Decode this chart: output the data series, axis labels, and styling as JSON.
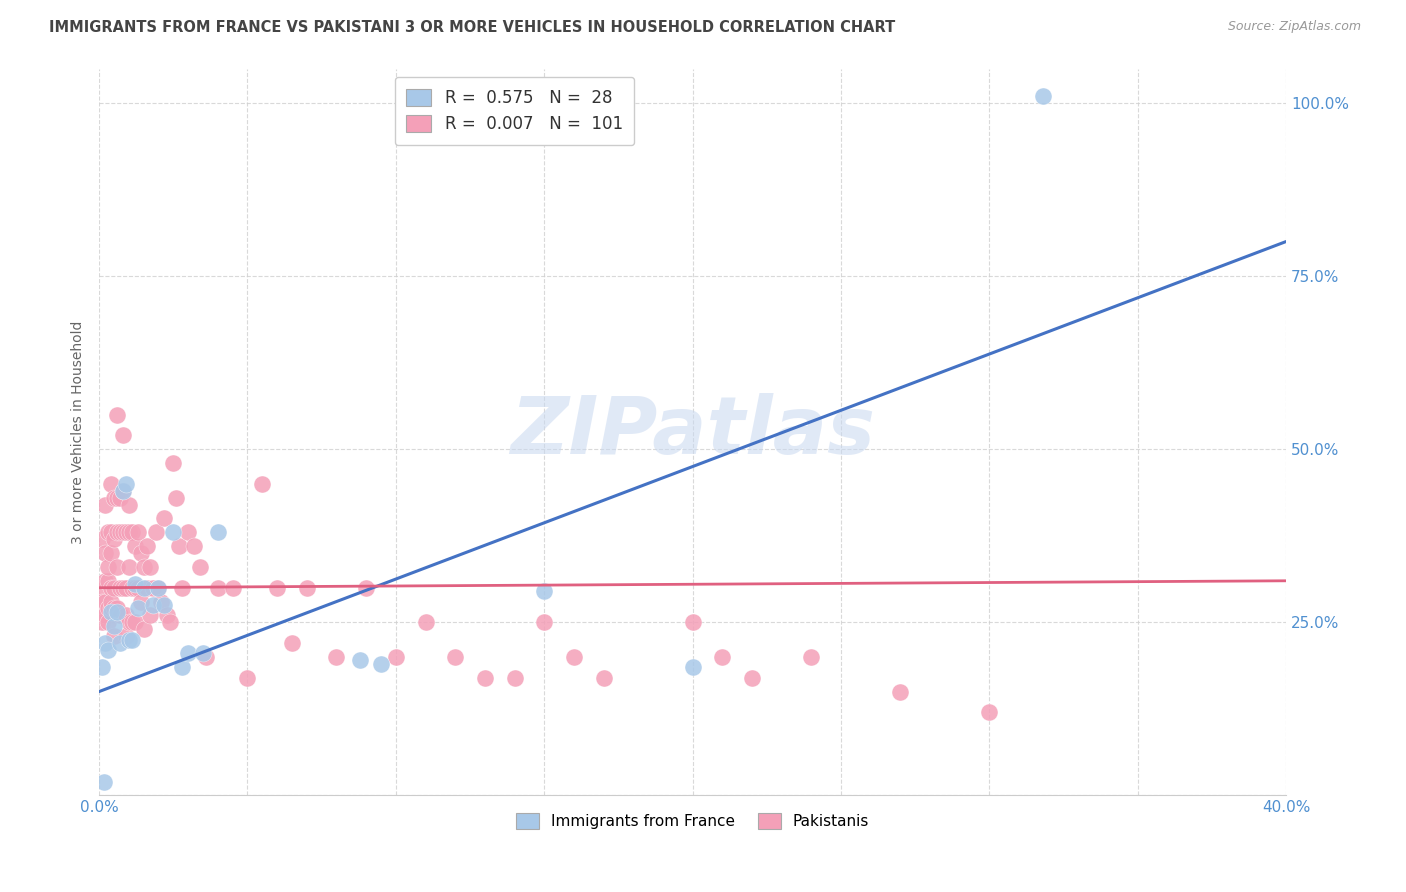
{
  "title": "IMMIGRANTS FROM FRANCE VS PAKISTANI 3 OR MORE VEHICLES IN HOUSEHOLD CORRELATION CHART",
  "source": "Source: ZipAtlas.com",
  "ylabel": "3 or more Vehicles in Household",
  "legend_blue_R": "0.575",
  "legend_blue_N": "28",
  "legend_pink_R": "0.007",
  "legend_pink_N": "101",
  "legend_blue_label": "Immigrants from France",
  "legend_pink_label": "Pakistanis",
  "watermark": "ZIPatlas",
  "blue_scatter_color": "#a8c8e8",
  "blue_line_color": "#4472c4",
  "pink_scatter_color": "#f4a0b8",
  "pink_line_color": "#e06080",
  "axis_label_color": "#5090d0",
  "background_color": "#ffffff",
  "grid_color": "#d0d0d0",
  "title_color": "#444444",
  "source_color": "#999999",
  "watermark_color": "#c8d8f0",
  "xlim": [
    0.0,
    0.4
  ],
  "ylim": [
    0.0,
    1.05
  ],
  "france_x": [
    0.001,
    0.0015,
    0.002,
    0.003,
    0.004,
    0.005,
    0.006,
    0.007,
    0.008,
    0.009,
    0.01,
    0.011,
    0.012,
    0.013,
    0.015,
    0.018,
    0.02,
    0.022,
    0.025,
    0.028,
    0.03,
    0.035,
    0.04,
    0.088,
    0.095,
    0.15,
    0.2,
    0.318
  ],
  "france_y": [
    0.185,
    0.02,
    0.22,
    0.21,
    0.265,
    0.245,
    0.265,
    0.22,
    0.44,
    0.45,
    0.225,
    0.225,
    0.305,
    0.27,
    0.3,
    0.275,
    0.3,
    0.275,
    0.38,
    0.185,
    0.205,
    0.205,
    0.38,
    0.195,
    0.19,
    0.295,
    0.185,
    1.01
  ],
  "pakistan_x": [
    0.001,
    0.001,
    0.001,
    0.001,
    0.001,
    0.002,
    0.002,
    0.002,
    0.002,
    0.002,
    0.003,
    0.003,
    0.003,
    0.003,
    0.003,
    0.004,
    0.004,
    0.004,
    0.004,
    0.004,
    0.004,
    0.005,
    0.005,
    0.005,
    0.005,
    0.005,
    0.006,
    0.006,
    0.006,
    0.006,
    0.006,
    0.007,
    0.007,
    0.007,
    0.007,
    0.008,
    0.008,
    0.008,
    0.008,
    0.009,
    0.009,
    0.009,
    0.009,
    0.01,
    0.01,
    0.01,
    0.01,
    0.011,
    0.011,
    0.011,
    0.012,
    0.012,
    0.012,
    0.013,
    0.013,
    0.014,
    0.014,
    0.015,
    0.015,
    0.016,
    0.016,
    0.017,
    0.017,
    0.018,
    0.019,
    0.02,
    0.021,
    0.022,
    0.023,
    0.024,
    0.025,
    0.026,
    0.027,
    0.028,
    0.03,
    0.032,
    0.034,
    0.036,
    0.04,
    0.045,
    0.05,
    0.055,
    0.06,
    0.065,
    0.07,
    0.08,
    0.09,
    0.1,
    0.11,
    0.12,
    0.13,
    0.14,
    0.15,
    0.16,
    0.17,
    0.2,
    0.21,
    0.22,
    0.24,
    0.27,
    0.3
  ],
  "pakistan_y": [
    0.3,
    0.28,
    0.26,
    0.37,
    0.25,
    0.35,
    0.31,
    0.28,
    0.42,
    0.26,
    0.31,
    0.33,
    0.27,
    0.38,
    0.25,
    0.38,
    0.35,
    0.3,
    0.27,
    0.45,
    0.28,
    0.43,
    0.37,
    0.3,
    0.27,
    0.23,
    0.43,
    0.38,
    0.33,
    0.27,
    0.55,
    0.43,
    0.38,
    0.3,
    0.26,
    0.52,
    0.44,
    0.38,
    0.3,
    0.38,
    0.3,
    0.26,
    0.23,
    0.38,
    0.33,
    0.25,
    0.42,
    0.38,
    0.3,
    0.25,
    0.36,
    0.3,
    0.25,
    0.38,
    0.3,
    0.35,
    0.28,
    0.33,
    0.24,
    0.36,
    0.3,
    0.33,
    0.26,
    0.3,
    0.38,
    0.3,
    0.28,
    0.4,
    0.26,
    0.25,
    0.48,
    0.43,
    0.36,
    0.3,
    0.38,
    0.36,
    0.33,
    0.2,
    0.3,
    0.3,
    0.17,
    0.45,
    0.3,
    0.22,
    0.3,
    0.2,
    0.3,
    0.2,
    0.25,
    0.2,
    0.17,
    0.17,
    0.25,
    0.2,
    0.17,
    0.25,
    0.2,
    0.17,
    0.2,
    0.15,
    0.12
  ],
  "blue_trend_x0": 0.0,
  "blue_trend_y0": 0.15,
  "blue_trend_x1": 0.4,
  "blue_trend_y1": 0.8,
  "pink_trend_x0": 0.0,
  "pink_trend_y0": 0.3,
  "pink_trend_x1": 0.4,
  "pink_trend_y1": 0.31
}
